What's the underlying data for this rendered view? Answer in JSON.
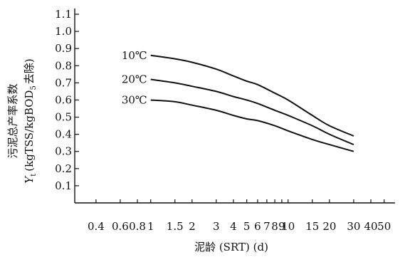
{
  "chart_data": {
    "type": "line",
    "title": "",
    "xlabel": "泥龄 (SRT) (d)",
    "ylabel_main": "污泥总产率系数",
    "ylabel_sub": "Y",
    "ylabel_sub_index": "t",
    "ylabel_unit": "(kgTSS/kgBOD",
    "ylabel_unit_sub": "5",
    "ylabel_unit_tail": "去除)",
    "ylim": [
      0,
      1.1
    ],
    "xscale": "log",
    "grid": false,
    "x_ticks": [
      0.4,
      0.6,
      0.8,
      1,
      1.5,
      2,
      3,
      4,
      5,
      6,
      7,
      8,
      9,
      10,
      15,
      20,
      30,
      40,
      50
    ],
    "x_tick_labels": [
      "0.4",
      "0.6",
      "0.8",
      "1",
      "1.5",
      "2",
      "3",
      "4",
      "5",
      "6",
      "7",
      "8",
      "9",
      "10",
      "15",
      "20",
      "30",
      "40",
      "50"
    ],
    "y_ticks": [
      0.1,
      0.2,
      0.3,
      0.4,
      0.5,
      0.6,
      0.7,
      0.8,
      0.9,
      1.0,
      1.1
    ],
    "y_tick_labels": [
      "0.1",
      "0.2",
      "0.3",
      "0.4",
      "0.5",
      "0.6",
      "0.7",
      "0.8",
      "0.9",
      "1.0",
      "1.1"
    ],
    "series": [
      {
        "name": "10℃",
        "x": [
          1,
          1.5,
          2,
          3,
          4,
          5,
          6,
          8,
          10,
          15,
          20,
          30
        ],
        "y": [
          0.86,
          0.84,
          0.82,
          0.78,
          0.74,
          0.71,
          0.69,
          0.64,
          0.6,
          0.51,
          0.45,
          0.39
        ]
      },
      {
        "name": "20℃",
        "x": [
          1,
          1.5,
          2,
          3,
          4,
          5,
          6,
          8,
          10,
          15,
          20,
          30
        ],
        "y": [
          0.72,
          0.7,
          0.68,
          0.65,
          0.62,
          0.6,
          0.58,
          0.54,
          0.51,
          0.45,
          0.4,
          0.34
        ]
      },
      {
        "name": "30℃",
        "x": [
          1,
          1.5,
          2,
          3,
          4,
          5,
          6,
          8,
          10,
          15,
          20,
          30
        ],
        "y": [
          0.6,
          0.59,
          0.57,
          0.54,
          0.51,
          0.49,
          0.48,
          0.45,
          0.42,
          0.37,
          0.34,
          0.3
        ]
      }
    ]
  }
}
